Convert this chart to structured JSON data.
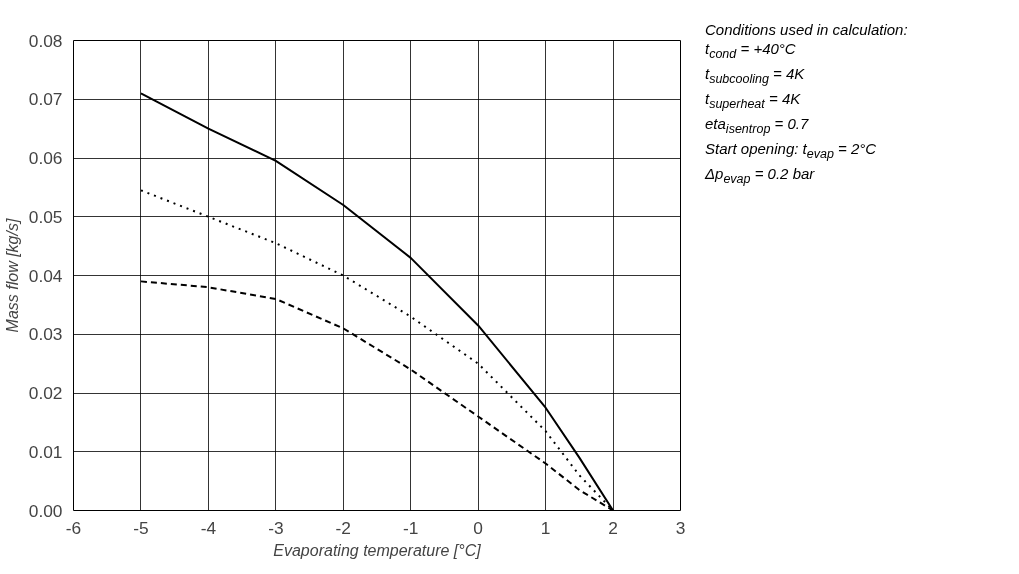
{
  "chart_data": {
    "type": "line",
    "xlabel": "Evaporating temperature [°C]",
    "ylabel": "Mass flow [kg/s]",
    "x": [
      -5,
      -4,
      -3,
      -2,
      -1,
      0,
      1,
      1.5,
      2
    ],
    "series": [
      {
        "color": "#000000",
        "line_style": "dotted",
        "values": [
          0.0545,
          0.05,
          0.0455,
          0.04,
          0.033,
          0.025,
          0.0135,
          0.006,
          0
        ]
      },
      {
        "color": "#000000",
        "line_style": "solid",
        "values": [
          0.071,
          0.065,
          0.0595,
          0.052,
          0.043,
          0.0315,
          0.0175,
          0.009,
          0
        ]
      },
      {
        "color": "#000000",
        "line_style": "dashed",
        "values": [
          0.039,
          0.038,
          0.036,
          0.031,
          0.024,
          0.016,
          0.008,
          0.0035,
          0
        ]
      }
    ],
    "xlim": [
      -6,
      3
    ],
    "xticks": [
      -6,
      -5,
      -4,
      -3,
      -2,
      -1,
      0,
      1,
      2,
      3
    ],
    "ylim": [
      0,
      0.08
    ],
    "yticks": [
      {
        "value": 0,
        "label": "0.00"
      },
      0.01,
      0.02,
      0.03,
      0.04,
      0.05,
      0.06,
      0.07,
      0.08
    ],
    "grid": true,
    "marker": "none",
    "annotations": [
      "Conditions used in calculation:",
      "t$_{cond}$ = +40°C",
      "t$_{subcooling}$ = 4K",
      "t$_{superheat}$ = 4K",
      "eta$_{isentrop}$ = 0.7",
      "Start opening: t$_{evap}$ = 2°C",
      "Δp$_{evap}$ = 0.2 bar"
    ]
  }
}
